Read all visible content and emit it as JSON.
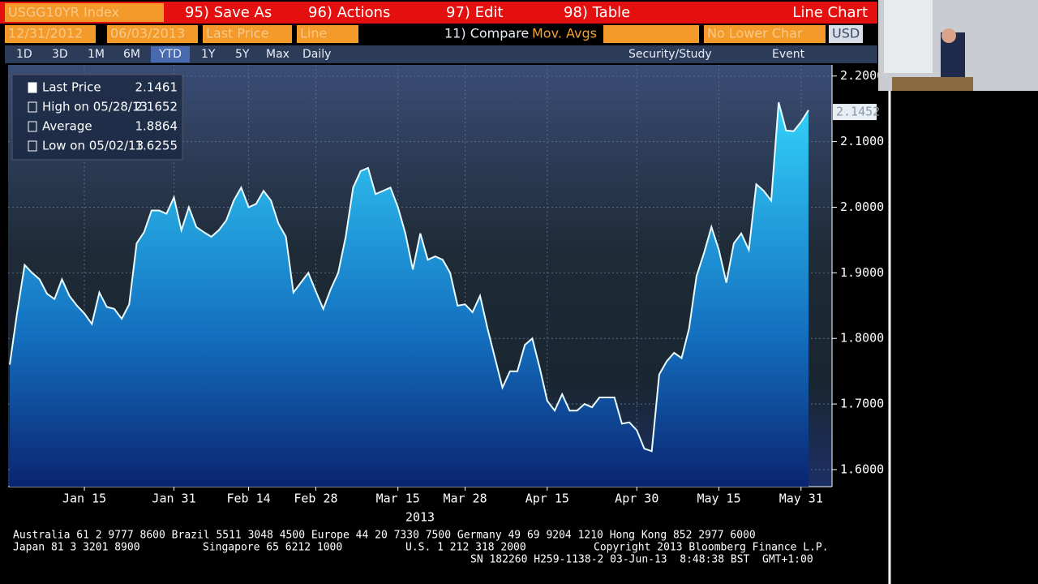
{
  "toolbar": {
    "security": "USGG10YR Index",
    "save_as": "95) Save As",
    "actions": "96) Actions",
    "edit": "97) Edit",
    "table": "98) Table",
    "chart_kind": "Line Chart",
    "start_date": "12/31/2012",
    "end_date": "06/03/2013",
    "field": "Last Price",
    "style": "Line",
    "compare": "11) Compare",
    "mov_avgs": "Mov. Avgs",
    "lower_chart": "No Lower Char",
    "currency": "USD",
    "periods": [
      "1D",
      "3D",
      "1M",
      "6M",
      "YTD",
      "1Y",
      "5Y",
      "Max"
    ],
    "frequency": "Daily",
    "study": "Security/Study",
    "event": "Event"
  },
  "chart_data": {
    "type": "area",
    "color": "#29c6f2",
    "line_color": "#e8fbff",
    "legend": [
      {
        "label": "Last Price",
        "value": 2.1461
      },
      {
        "label": "High on 05/28/13",
        "value": 2.1652
      },
      {
        "label": "Average",
        "value": 1.8864
      },
      {
        "label": "Low on 05/02/13",
        "value": 1.6255
      }
    ],
    "last_value_tag": 2.1452,
    "x_label": "2013",
    "categories": [
      null,
      null,
      null,
      null,
      null,
      null,
      null,
      null,
      null,
      null,
      "Jan 15",
      null,
      null,
      null,
      null,
      null,
      null,
      null,
      null,
      null,
      null,
      null,
      "Jan 31",
      null,
      null,
      null,
      null,
      null,
      null,
      null,
      null,
      null,
      "Feb 14",
      null,
      null,
      null,
      null,
      null,
      null,
      null,
      null,
      "Feb 28",
      null,
      null,
      null,
      null,
      null,
      null,
      null,
      null,
      null,
      null,
      "Mar 15",
      null,
      null,
      null,
      null,
      null,
      null,
      null,
      null,
      "Mar 28",
      null,
      null,
      null,
      null,
      null,
      null,
      null,
      null,
      null,
      null,
      "Apr 15",
      null,
      null,
      null,
      null,
      null,
      null,
      null,
      null,
      null,
      null,
      null,
      "Apr 30",
      null,
      null,
      null,
      null,
      null,
      null,
      null,
      null,
      null,
      null,
      "May 15",
      null,
      null,
      null,
      null,
      null,
      null,
      null,
      null,
      null,
      null,
      "May 31",
      null
    ],
    "values": [
      1.76,
      1.84,
      1.912,
      1.9,
      1.89,
      1.868,
      1.86,
      1.89,
      1.865,
      1.85,
      1.838,
      1.822,
      1.87,
      1.848,
      1.845,
      1.83,
      1.852,
      1.945,
      1.962,
      1.995,
      1.995,
      1.99,
      2.015,
      1.965,
      2.0,
      1.97,
      1.962,
      1.955,
      1.965,
      1.98,
      2.01,
      2.03,
      2.0,
      2.005,
      2.025,
      2.01,
      1.975,
      1.955,
      1.87,
      1.885,
      1.9,
      1.872,
      1.845,
      1.875,
      1.9,
      1.955,
      2.03,
      2.055,
      2.06,
      2.02,
      2.025,
      2.03,
      2.0,
      1.96,
      1.905,
      1.96,
      1.92,
      1.925,
      1.92,
      1.9,
      1.85,
      1.852,
      1.84,
      1.865,
      1.815,
      1.77,
      1.725,
      1.75,
      1.75,
      1.79,
      1.8,
      1.755,
      1.705,
      1.69,
      1.715,
      1.69,
      1.69,
      1.7,
      1.695,
      1.71,
      1.71,
      1.71,
      1.67,
      1.672,
      1.66,
      1.632,
      1.628,
      1.745,
      1.765,
      1.778,
      1.77,
      1.815,
      1.895,
      1.93,
      1.97,
      1.935,
      1.885,
      1.945,
      1.96,
      1.935,
      2.035,
      2.025,
      2.01,
      2.16,
      2.117,
      2.116,
      2.13,
      2.148
    ],
    "ylim": [
      1.574,
      2.217
    ],
    "yticks": [
      {
        "value": 1.6,
        "label": "1.6000"
      },
      {
        "value": 1.7,
        "label": "1.7000"
      },
      {
        "value": 1.8,
        "label": "1.8000"
      },
      {
        "value": 1.9,
        "label": "1.9000"
      },
      {
        "value": 2.0,
        "label": "2.0000"
      },
      {
        "value": 2.1,
        "label": "2.1000"
      },
      {
        "value": 2.2,
        "label": "2.2000"
      }
    ],
    "grid": true
  },
  "footer": {
    "line1": "Australia 61 2 9777 8600 Brazil 5511 3048 4500 Europe 44 20 7330 7500 Germany 49 69 9204 1210 Hong Kong 852 2977 6000",
    "japan": "Japan 81 3 3201 8900",
    "singapore": "Singapore 65 6212 1000",
    "us": "U.S. 1 212 318 2000",
    "copyright": "Copyright 2013 Bloomberg Finance L.P.",
    "session": "SN 182260 H259-1138-2 03-Jun-13  8:48:38 BST  GMT+1:00"
  }
}
